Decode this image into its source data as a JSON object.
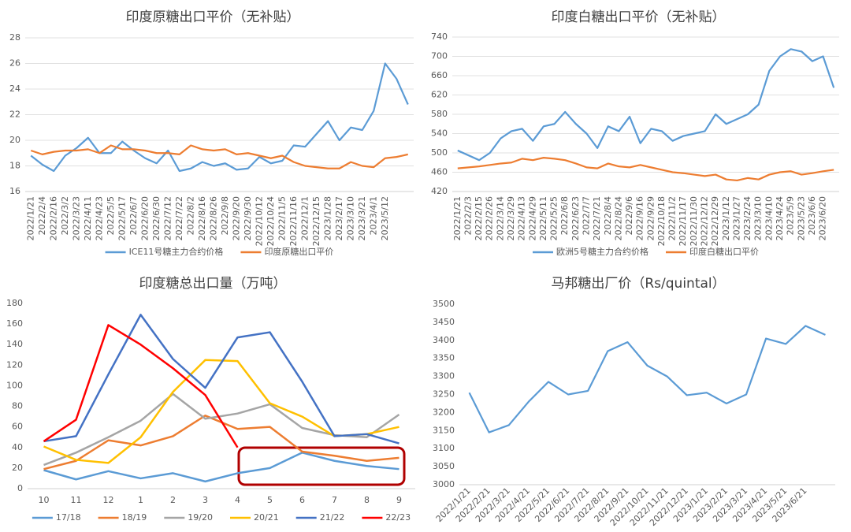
{
  "chart_data": [
    {
      "type": "line",
      "title": "印度原糖出口平价（无补贴）",
      "categories": [
        "2022/1/21",
        "2022/2/4",
        "2022/2/16",
        "2022/3/2",
        "2022/3/23",
        "2022/4/11",
        "2022/4/23",
        "2022/5/5",
        "2022/5/17",
        "2022/6/7",
        "2022/6/20",
        "2022/6/30",
        "2022/7/12",
        "2022/7/22",
        "2022/8/2",
        "2022/8/16",
        "2022/8/26",
        "2022/9/8",
        "2022/9/20",
        "2022/9/30",
        "2022/10/12",
        "2022/10/24",
        "2022/11/5",
        "2022/11/16",
        "2022/12/1",
        "2022/12/15",
        "2023/1/28",
        "2023/2/17",
        "2023/3/10",
        "2023/3/21",
        "2023/4/1",
        "2023/5/12",
        null,
        null
      ],
      "series": [
        {
          "name": "ICE11号糖主力合约价格",
          "color": "#5b9bd5",
          "values": [
            18.8,
            18.1,
            17.6,
            18.8,
            19.4,
            20.2,
            19.0,
            19.0,
            19.9,
            19.2,
            18.6,
            18.2,
            19.2,
            17.6,
            17.8,
            18.3,
            18.0,
            18.2,
            17.7,
            17.8,
            18.7,
            18.2,
            18.4,
            19.6,
            19.5,
            20.5,
            21.5,
            20.0,
            21.0,
            20.8,
            22.3,
            26.0,
            24.8,
            22.8
          ]
        },
        {
          "name": "印度原糖出口平价",
          "color": "#ed7d31",
          "values": [
            19.2,
            18.9,
            19.1,
            19.2,
            19.2,
            19.3,
            19.0,
            19.6,
            19.3,
            19.3,
            19.2,
            19.0,
            19.0,
            18.9,
            19.6,
            19.3,
            19.2,
            19.3,
            18.9,
            19.0,
            18.8,
            18.6,
            18.8,
            18.3,
            18.0,
            17.9,
            17.8,
            17.8,
            18.3,
            18.0,
            17.9,
            18.6,
            18.7,
            18.9
          ]
        }
      ],
      "ylim": [
        16,
        28
      ],
      "yticks": [
        16,
        18,
        20,
        22,
        24,
        26,
        28
      ],
      "grid": true,
      "legend": "bottom"
    },
    {
      "type": "line",
      "title": "印度白糖出口平价（无补贴）",
      "categories": [
        "2022/1/21",
        "2022/2/3",
        "2022/2/15",
        "2022/2/26",
        "2022/3/14",
        "2022/3/29",
        "2022/4/13",
        "2022/4/29",
        "2022/5/11",
        "2022/5/25",
        "2022/6/8",
        "2022/6/23",
        "2022/7/7",
        "2022/7/21",
        "2022/8/4",
        "2022/8/24",
        "2022/9/6",
        "2022/9/16",
        "2022/9/29",
        "2022/10/18",
        "2022/11/2",
        "2022/11/17",
        "2022/11/30",
        "2022/12/12",
        "2022/12/29",
        "2023/1/12",
        "2023/1/27",
        "2023/2/24",
        "2023/3/10",
        "2023/4/10",
        "2023/4/24",
        "2023/5/9",
        "2023/5/23",
        "2023/6/6",
        "2023/6/20",
        null
      ],
      "series": [
        {
          "name": "欧洲5号糖主力合约价格",
          "color": "#5b9bd5",
          "values": [
            505,
            495,
            485,
            500,
            530,
            545,
            550,
            525,
            555,
            560,
            585,
            560,
            540,
            510,
            555,
            545,
            575,
            520,
            550,
            545,
            525,
            535,
            540,
            545,
            580,
            560,
            570,
            580,
            600,
            670,
            700,
            715,
            710,
            690,
            700,
            635
          ]
        },
        {
          "name": "印度白糖出口平价",
          "color": "#ed7d31",
          "values": [
            468,
            470,
            472,
            475,
            478,
            480,
            488,
            485,
            490,
            488,
            485,
            478,
            470,
            468,
            478,
            472,
            470,
            475,
            470,
            465,
            460,
            458,
            455,
            452,
            455,
            445,
            443,
            448,
            445,
            455,
            460,
            462,
            455,
            458,
            462,
            465
          ]
        }
      ],
      "ylim": [
        420,
        740
      ],
      "yticks": [
        420,
        460,
        500,
        540,
        580,
        620,
        660,
        700,
        740
      ],
      "grid": true,
      "legend": "bottom"
    },
    {
      "type": "line",
      "title": "印度糖总出口量（万吨）",
      "categories": [
        "10",
        "11",
        "12",
        "1",
        "2",
        "3",
        "4",
        "5",
        "6",
        "7",
        "8",
        "9"
      ],
      "series": [
        {
          "name": "17/18",
          "color": "#5b9bd5",
          "values": [
            18,
            9,
            17,
            10,
            15,
            7,
            15,
            20,
            35,
            27,
            22,
            19
          ]
        },
        {
          "name": "18/19",
          "color": "#ed7d31",
          "values": [
            19,
            27,
            47,
            42,
            51,
            71,
            58,
            60,
            36,
            32,
            27,
            30
          ]
        },
        {
          "name": "19/20",
          "color": "#a5a5a5",
          "values": [
            23,
            35,
            50,
            66,
            92,
            68,
            73,
            82,
            59,
            52,
            50,
            72
          ]
        },
        {
          "name": "20/21",
          "color": "#ffc000",
          "values": [
            41,
            28,
            25,
            50,
            94,
            125,
            124,
            83,
            70,
            51,
            53,
            60
          ]
        },
        {
          "name": "21/22",
          "color": "#4472c4",
          "values": [
            46,
            51,
            111,
            169,
            126,
            98,
            147,
            152,
            104,
            51,
            53,
            44
          ]
        },
        {
          "name": "22/23",
          "color": "#ff0000",
          "values": [
            46,
            67,
            159,
            140,
            117,
            91,
            40,
            null,
            null,
            null,
            null,
            null
          ]
        }
      ],
      "ylim": [
        0,
        180
      ],
      "yticks": [
        0,
        20,
        40,
        60,
        80,
        100,
        120,
        140,
        160,
        180
      ],
      "grid": false,
      "legend": "bottom"
    },
    {
      "type": "line",
      "title": "马邦糖出厂价（Rs/quintal）",
      "categories": [
        "2022/1/21",
        "2022/2/21",
        "2022/3/21",
        "2022/4/21",
        "2022/5/21",
        "2022/6/21",
        "2022/7/21",
        "2022/8/21",
        "2022/9/21",
        "2022/10/21",
        "2022/11/21",
        "2022/12/21",
        "2023/1/21",
        "2023/2/21",
        "2023/3/21",
        "2023/4/21",
        "2023/5/21",
        "2023/6/21",
        null
      ],
      "values": [
        3255,
        3145,
        3165,
        3230,
        3285,
        3250,
        3260,
        3370,
        3395,
        3330,
        3300,
        3248,
        3255,
        3225,
        3250,
        3405,
        3390,
        3440,
        3415
      ],
      "color": "#5b9bd5",
      "ylim": [
        3000,
        3500
      ],
      "yticks": [
        3000,
        3050,
        3100,
        3150,
        3200,
        3250,
        3300,
        3350,
        3400,
        3450,
        3500
      ],
      "grid": false
    }
  ]
}
